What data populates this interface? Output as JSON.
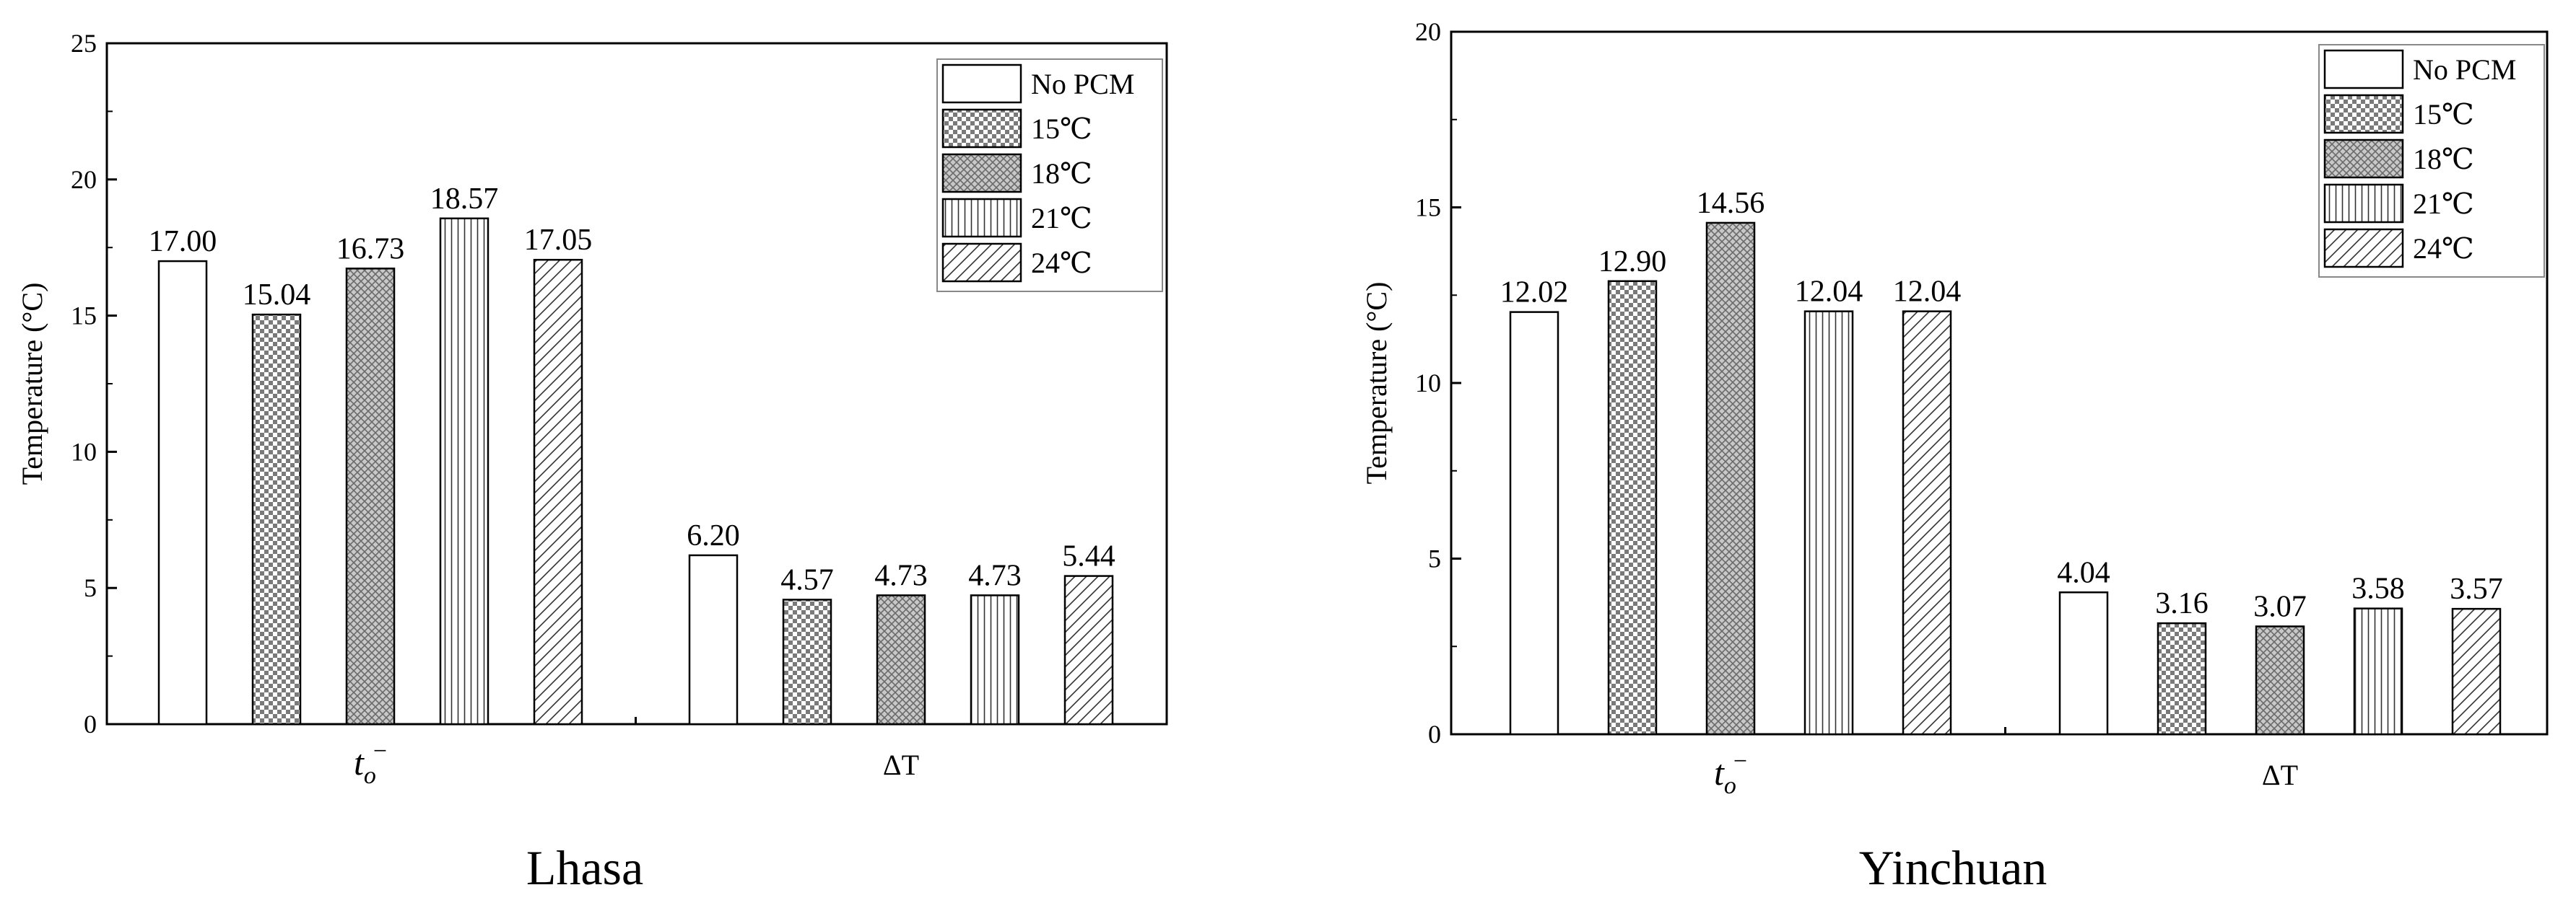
{
  "legend": [
    {
      "label": "No PCM",
      "pattern": "none"
    },
    {
      "label": "15℃",
      "pattern": "dots-dark"
    },
    {
      "label": "18℃",
      "pattern": "crosshatch"
    },
    {
      "label": "21℃",
      "pattern": "vertical"
    },
    {
      "label": "24℃",
      "pattern": "diagonal"
    }
  ],
  "chart_data": [
    {
      "type": "bar",
      "caption": "Lhasa",
      "ylabel": "Temperature (°C)",
      "ylim": [
        0,
        25
      ],
      "yticks": [
        0,
        5,
        10,
        15,
        20,
        25
      ],
      "categories": [
        "t_o^-",
        "ΔT"
      ],
      "category_display": [
        {
          "base": "t",
          "sub": "o",
          "sup": "−"
        },
        {
          "base": "ΔT",
          "sub": "",
          "sup": ""
        }
      ],
      "series": [
        {
          "name": "No PCM",
          "values": [
            17.0,
            6.2
          ],
          "labels": [
            "17.00",
            "6.20"
          ]
        },
        {
          "name": "15℃",
          "values": [
            15.04,
            4.57
          ],
          "labels": [
            "15.04",
            "4.57"
          ]
        },
        {
          "name": "18℃",
          "values": [
            16.73,
            4.73
          ],
          "labels": [
            "16.73",
            "4.73"
          ]
        },
        {
          "name": "21℃",
          "values": [
            18.57,
            4.73
          ],
          "labels": [
            "18.57",
            "4.73"
          ]
        },
        {
          "name": "24℃",
          "values": [
            17.05,
            5.44
          ],
          "labels": [
            "17.05",
            "5.44"
          ]
        }
      ],
      "legend_position": "top-right"
    },
    {
      "type": "bar",
      "caption": "Yinchuan",
      "ylabel": "Temperature (°C)",
      "ylim": [
        0,
        20
      ],
      "yticks": [
        0,
        5,
        10,
        15,
        20
      ],
      "categories": [
        "t_o^-",
        "ΔT"
      ],
      "category_display": [
        {
          "base": "t",
          "sub": "o",
          "sup": "−"
        },
        {
          "base": "ΔT",
          "sub": "",
          "sup": ""
        }
      ],
      "series": [
        {
          "name": "No PCM",
          "values": [
            12.02,
            4.04
          ],
          "labels": [
            "12.02",
            "4.04"
          ]
        },
        {
          "name": "15℃",
          "values": [
            12.9,
            3.16
          ],
          "labels": [
            "12.90",
            "3.16"
          ]
        },
        {
          "name": "18℃",
          "values": [
            14.56,
            3.07
          ],
          "labels": [
            "14.56",
            "3.07"
          ]
        },
        {
          "name": "21℃",
          "values": [
            12.04,
            3.58
          ],
          "labels": [
            "12.04",
            "3.58"
          ]
        },
        {
          "name": "24℃",
          "values": [
            12.04,
            3.57
          ],
          "labels": [
            "12.04",
            "3.57"
          ]
        }
      ],
      "legend_position": "top-right"
    }
  ]
}
